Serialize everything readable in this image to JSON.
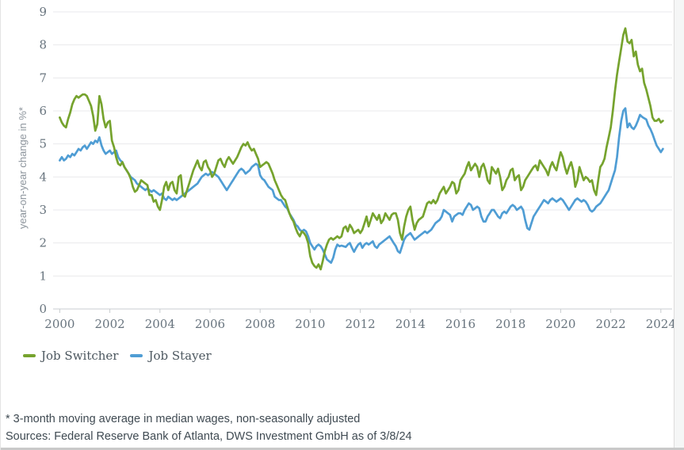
{
  "chart": {
    "y_axis_title": "year-on-year change in %*",
    "y_ticks": [
      0,
      1,
      2,
      3,
      4,
      5,
      6,
      7,
      8,
      9
    ],
    "x_ticks": [
      2000,
      2002,
      2004,
      2006,
      2008,
      2010,
      2012,
      2014,
      2016,
      2018,
      2020,
      2022,
      2024
    ],
    "colors": {
      "gridline": "#eaeaec",
      "axis": "#c9cdd0",
      "tick_label": "#68747e",
      "axis_title": "#8d959d",
      "job_switcher": "#76a32e",
      "job_stayer": "#4f9dd4"
    }
  },
  "legend": {
    "items": [
      {
        "label": "Job Switcher",
        "color": "#76a32e"
      },
      {
        "label": "Job Stayer",
        "color": "#4f9dd4"
      }
    ]
  },
  "footnotes": {
    "line1": "* 3-month moving average in median wages, non-seasonally adjusted",
    "line2": "Sources: Federal Reserve Bank of Atlanta, DWS Investment GmbH as of 3/8/24"
  },
  "chart_data": {
    "type": "line",
    "title": "",
    "ylabel": "year-on-year change in %*",
    "xlabel": "",
    "ylim": [
      0,
      9
    ],
    "xlim": [
      2000,
      2024.4
    ],
    "grid": "horizontal",
    "legend_position": "bottom-left",
    "x_start_year": 2000,
    "x_frequency": "monthly",
    "x_end": "2024-02",
    "series": [
      {
        "name": "Job Switcher",
        "color": "#76a32e",
        "values": [
          5.8,
          5.65,
          5.55,
          5.5,
          5.75,
          5.95,
          6.2,
          6.35,
          6.45,
          6.4,
          6.45,
          6.5,
          6.5,
          6.45,
          6.3,
          6.15,
          5.85,
          5.4,
          5.6,
          6.45,
          6.2,
          5.75,
          5.5,
          5.65,
          5.7,
          5.1,
          4.9,
          4.6,
          4.4,
          4.35,
          4.45,
          4.3,
          4.2,
          4.1,
          3.95,
          3.7,
          3.55,
          3.6,
          3.75,
          3.9,
          3.85,
          3.8,
          3.75,
          3.45,
          3.45,
          3.25,
          3.3,
          3.1,
          3.0,
          3.3,
          3.7,
          3.85,
          3.6,
          3.8,
          3.85,
          3.6,
          3.5,
          4.0,
          4.05,
          3.45,
          3.4,
          3.6,
          3.8,
          4.0,
          4.2,
          4.35,
          4.5,
          4.3,
          4.2,
          4.45,
          4.5,
          4.3,
          4.2,
          4.0,
          4.1,
          4.3,
          4.5,
          4.55,
          4.4,
          4.3,
          4.5,
          4.6,
          4.5,
          4.4,
          4.5,
          4.6,
          4.75,
          4.9,
          5.0,
          4.95,
          5.05,
          4.9,
          4.8,
          4.85,
          4.7,
          4.55,
          4.3,
          4.35,
          4.4,
          4.45,
          4.4,
          4.25,
          4.1,
          3.9,
          3.75,
          3.6,
          3.45,
          3.35,
          3.3,
          3.1,
          2.9,
          2.75,
          2.65,
          2.45,
          2.3,
          2.2,
          2.35,
          2.3,
          2.2,
          2.0,
          1.6,
          1.4,
          1.3,
          1.25,
          1.35,
          1.2,
          1.45,
          1.75,
          1.95,
          2.1,
          2.15,
          2.1,
          2.15,
          2.2,
          2.15,
          2.2,
          2.45,
          2.5,
          2.35,
          2.55,
          2.45,
          2.3,
          2.35,
          2.4,
          2.3,
          2.4,
          2.6,
          2.8,
          2.5,
          2.7,
          2.9,
          2.8,
          2.7,
          2.85,
          2.6,
          2.7,
          2.9,
          2.8,
          2.7,
          2.85,
          2.9,
          2.9,
          2.7,
          2.3,
          2.1,
          2.5,
          2.8,
          3.0,
          3.1,
          2.7,
          2.4,
          2.6,
          2.7,
          2.75,
          2.8,
          3.0,
          3.2,
          3.25,
          3.2,
          3.3,
          3.2,
          3.3,
          3.5,
          3.6,
          3.7,
          3.5,
          3.6,
          3.7,
          3.85,
          3.8,
          3.5,
          3.6,
          3.9,
          4.0,
          4.1,
          4.3,
          4.45,
          4.2,
          4.3,
          4.4,
          4.3,
          4.0,
          4.3,
          4.4,
          4.2,
          3.9,
          3.8,
          4.3,
          4.2,
          4.1,
          4.25,
          4.0,
          3.6,
          3.7,
          3.9,
          4.0,
          4.2,
          4.25,
          3.9,
          4.0,
          4.05,
          3.6,
          3.7,
          3.9,
          4.0,
          4.1,
          4.2,
          4.3,
          4.35,
          4.2,
          4.5,
          4.4,
          4.3,
          4.2,
          4.05,
          4.3,
          4.45,
          4.3,
          4.2,
          4.5,
          4.75,
          4.6,
          4.3,
          4.1,
          4.3,
          4.45,
          4.2,
          3.7,
          3.9,
          4.3,
          4.1,
          3.9,
          4.0,
          3.95,
          3.85,
          3.9,
          3.6,
          3.45,
          3.9,
          4.3,
          4.4,
          4.55,
          4.9,
          5.2,
          5.5,
          6.0,
          6.6,
          7.1,
          7.5,
          7.9,
          8.3,
          8.5,
          8.1,
          8.05,
          8.15,
          7.65,
          7.8,
          7.4,
          7.2,
          7.28,
          6.85,
          6.65,
          6.4,
          6.15,
          5.8,
          5.7,
          5.7,
          5.76,
          5.65,
          5.7
        ]
      },
      {
        "name": "Job Stayer",
        "color": "#4f9dd4",
        "values": [
          4.5,
          4.6,
          4.5,
          4.55,
          4.65,
          4.6,
          4.7,
          4.65,
          4.75,
          4.85,
          4.8,
          4.9,
          4.95,
          4.85,
          4.95,
          5.05,
          5.0,
          5.1,
          5.05,
          5.2,
          4.95,
          4.8,
          4.7,
          4.75,
          4.8,
          4.7,
          4.75,
          4.8,
          4.6,
          4.5,
          4.45,
          4.3,
          4.2,
          4.1,
          4.0,
          3.95,
          3.9,
          3.8,
          3.75,
          3.7,
          3.65,
          3.6,
          3.65,
          3.6,
          3.55,
          3.6,
          3.55,
          3.5,
          3.45,
          3.5,
          3.35,
          3.3,
          3.4,
          3.35,
          3.3,
          3.35,
          3.3,
          3.35,
          3.4,
          3.45,
          3.5,
          3.55,
          3.6,
          3.65,
          3.7,
          3.75,
          3.8,
          3.9,
          4.0,
          4.05,
          4.1,
          4.05,
          4.1,
          4.15,
          4.1,
          4.05,
          4.0,
          3.9,
          3.8,
          3.7,
          3.6,
          3.7,
          3.8,
          3.9,
          4.0,
          4.1,
          4.2,
          4.25,
          4.2,
          4.1,
          4.15,
          4.2,
          4.3,
          4.35,
          4.4,
          4.35,
          4.05,
          3.95,
          3.9,
          3.8,
          3.7,
          3.65,
          3.6,
          3.4,
          3.35,
          3.3,
          3.3,
          3.2,
          3.1,
          3.05,
          2.9,
          2.8,
          2.7,
          2.55,
          2.5,
          2.4,
          2.35,
          2.4,
          2.35,
          2.2,
          2.0,
          1.9,
          1.8,
          1.9,
          1.95,
          1.9,
          1.8,
          1.65,
          1.5,
          1.45,
          1.4,
          1.55,
          1.8,
          1.95,
          1.9,
          1.92,
          1.9,
          1.88,
          1.95,
          2.0,
          1.85,
          1.73,
          1.85,
          1.95,
          2.0,
          1.85,
          1.95,
          2.0,
          1.95,
          2.0,
          2.05,
          1.9,
          1.85,
          1.95,
          2.0,
          2.05,
          2.1,
          2.15,
          2.2,
          2.1,
          2.0,
          1.9,
          1.75,
          1.7,
          1.9,
          2.1,
          2.2,
          2.25,
          2.3,
          2.2,
          2.1,
          2.15,
          2.2,
          2.25,
          2.3,
          2.35,
          2.3,
          2.35,
          2.4,
          2.5,
          2.6,
          2.65,
          2.7,
          2.8,
          3.0,
          2.95,
          2.9,
          2.85,
          2.65,
          2.8,
          2.85,
          2.9,
          2.9,
          2.85,
          3.0,
          3.1,
          3.2,
          3.15,
          3.0,
          3.05,
          3.1,
          3.05,
          2.8,
          2.65,
          2.65,
          2.8,
          2.9,
          3.0,
          3.0,
          2.9,
          2.8,
          2.75,
          2.9,
          2.95,
          2.9,
          3.0,
          3.1,
          3.15,
          3.1,
          3.0,
          3.05,
          3.1,
          3.0,
          2.7,
          2.45,
          2.4,
          2.6,
          2.8,
          2.9,
          3.0,
          3.1,
          3.2,
          3.3,
          3.25,
          3.2,
          3.3,
          3.35,
          3.3,
          3.25,
          3.3,
          3.35,
          3.3,
          3.2,
          3.1,
          3.0,
          3.1,
          3.2,
          3.3,
          3.35,
          3.3,
          3.25,
          3.3,
          3.25,
          3.15,
          3.0,
          2.95,
          3.0,
          3.1,
          3.15,
          3.2,
          3.3,
          3.4,
          3.5,
          3.6,
          3.8,
          4.0,
          4.2,
          4.6,
          5.2,
          5.7,
          6.0,
          6.08,
          5.5,
          5.62,
          5.5,
          5.45,
          5.55,
          5.7,
          5.88,
          5.82,
          5.78,
          5.74,
          5.56,
          5.45,
          5.3,
          5.12,
          4.95,
          4.85,
          4.75,
          4.85
        ]
      }
    ]
  }
}
